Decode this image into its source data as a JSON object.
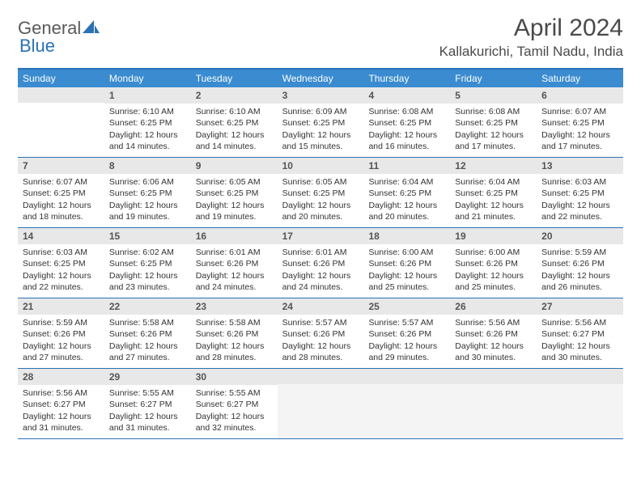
{
  "logo": {
    "part1": "General",
    "part2": "Blue"
  },
  "title": "April 2024",
  "location": "Kallakurichi, Tamil Nadu, India",
  "weekdays": [
    "Sunday",
    "Monday",
    "Tuesday",
    "Wednesday",
    "Thursday",
    "Friday",
    "Saturday"
  ],
  "colors": {
    "header_bar": "#3a8bd0",
    "border": "#2a72b5",
    "daynum_bg": "#e8e8e8",
    "blank_bg": "#f4f4f4",
    "text": "#333333"
  },
  "weeks": [
    [
      {
        "n": "",
        "sr": "",
        "ss": "",
        "dl": ""
      },
      {
        "n": "1",
        "sr": "Sunrise: 6:10 AM",
        "ss": "Sunset: 6:25 PM",
        "dl": "Daylight: 12 hours and 14 minutes."
      },
      {
        "n": "2",
        "sr": "Sunrise: 6:10 AM",
        "ss": "Sunset: 6:25 PM",
        "dl": "Daylight: 12 hours and 14 minutes."
      },
      {
        "n": "3",
        "sr": "Sunrise: 6:09 AM",
        "ss": "Sunset: 6:25 PM",
        "dl": "Daylight: 12 hours and 15 minutes."
      },
      {
        "n": "4",
        "sr": "Sunrise: 6:08 AM",
        "ss": "Sunset: 6:25 PM",
        "dl": "Daylight: 12 hours and 16 minutes."
      },
      {
        "n": "5",
        "sr": "Sunrise: 6:08 AM",
        "ss": "Sunset: 6:25 PM",
        "dl": "Daylight: 12 hours and 17 minutes."
      },
      {
        "n": "6",
        "sr": "Sunrise: 6:07 AM",
        "ss": "Sunset: 6:25 PM",
        "dl": "Daylight: 12 hours and 17 minutes."
      }
    ],
    [
      {
        "n": "7",
        "sr": "Sunrise: 6:07 AM",
        "ss": "Sunset: 6:25 PM",
        "dl": "Daylight: 12 hours and 18 minutes."
      },
      {
        "n": "8",
        "sr": "Sunrise: 6:06 AM",
        "ss": "Sunset: 6:25 PM",
        "dl": "Daylight: 12 hours and 19 minutes."
      },
      {
        "n": "9",
        "sr": "Sunrise: 6:05 AM",
        "ss": "Sunset: 6:25 PM",
        "dl": "Daylight: 12 hours and 19 minutes."
      },
      {
        "n": "10",
        "sr": "Sunrise: 6:05 AM",
        "ss": "Sunset: 6:25 PM",
        "dl": "Daylight: 12 hours and 20 minutes."
      },
      {
        "n": "11",
        "sr": "Sunrise: 6:04 AM",
        "ss": "Sunset: 6:25 PM",
        "dl": "Daylight: 12 hours and 20 minutes."
      },
      {
        "n": "12",
        "sr": "Sunrise: 6:04 AM",
        "ss": "Sunset: 6:25 PM",
        "dl": "Daylight: 12 hours and 21 minutes."
      },
      {
        "n": "13",
        "sr": "Sunrise: 6:03 AM",
        "ss": "Sunset: 6:25 PM",
        "dl": "Daylight: 12 hours and 22 minutes."
      }
    ],
    [
      {
        "n": "14",
        "sr": "Sunrise: 6:03 AM",
        "ss": "Sunset: 6:25 PM",
        "dl": "Daylight: 12 hours and 22 minutes."
      },
      {
        "n": "15",
        "sr": "Sunrise: 6:02 AM",
        "ss": "Sunset: 6:25 PM",
        "dl": "Daylight: 12 hours and 23 minutes."
      },
      {
        "n": "16",
        "sr": "Sunrise: 6:01 AM",
        "ss": "Sunset: 6:26 PM",
        "dl": "Daylight: 12 hours and 24 minutes."
      },
      {
        "n": "17",
        "sr": "Sunrise: 6:01 AM",
        "ss": "Sunset: 6:26 PM",
        "dl": "Daylight: 12 hours and 24 minutes."
      },
      {
        "n": "18",
        "sr": "Sunrise: 6:00 AM",
        "ss": "Sunset: 6:26 PM",
        "dl": "Daylight: 12 hours and 25 minutes."
      },
      {
        "n": "19",
        "sr": "Sunrise: 6:00 AM",
        "ss": "Sunset: 6:26 PM",
        "dl": "Daylight: 12 hours and 25 minutes."
      },
      {
        "n": "20",
        "sr": "Sunrise: 5:59 AM",
        "ss": "Sunset: 6:26 PM",
        "dl": "Daylight: 12 hours and 26 minutes."
      }
    ],
    [
      {
        "n": "21",
        "sr": "Sunrise: 5:59 AM",
        "ss": "Sunset: 6:26 PM",
        "dl": "Daylight: 12 hours and 27 minutes."
      },
      {
        "n": "22",
        "sr": "Sunrise: 5:58 AM",
        "ss": "Sunset: 6:26 PM",
        "dl": "Daylight: 12 hours and 27 minutes."
      },
      {
        "n": "23",
        "sr": "Sunrise: 5:58 AM",
        "ss": "Sunset: 6:26 PM",
        "dl": "Daylight: 12 hours and 28 minutes."
      },
      {
        "n": "24",
        "sr": "Sunrise: 5:57 AM",
        "ss": "Sunset: 6:26 PM",
        "dl": "Daylight: 12 hours and 28 minutes."
      },
      {
        "n": "25",
        "sr": "Sunrise: 5:57 AM",
        "ss": "Sunset: 6:26 PM",
        "dl": "Daylight: 12 hours and 29 minutes."
      },
      {
        "n": "26",
        "sr": "Sunrise: 5:56 AM",
        "ss": "Sunset: 6:26 PM",
        "dl": "Daylight: 12 hours and 30 minutes."
      },
      {
        "n": "27",
        "sr": "Sunrise: 5:56 AM",
        "ss": "Sunset: 6:27 PM",
        "dl": "Daylight: 12 hours and 30 minutes."
      }
    ],
    [
      {
        "n": "28",
        "sr": "Sunrise: 5:56 AM",
        "ss": "Sunset: 6:27 PM",
        "dl": "Daylight: 12 hours and 31 minutes."
      },
      {
        "n": "29",
        "sr": "Sunrise: 5:55 AM",
        "ss": "Sunset: 6:27 PM",
        "dl": "Daylight: 12 hours and 31 minutes."
      },
      {
        "n": "30",
        "sr": "Sunrise: 5:55 AM",
        "ss": "Sunset: 6:27 PM",
        "dl": "Daylight: 12 hours and 32 minutes."
      },
      {
        "n": "",
        "sr": "",
        "ss": "",
        "dl": "",
        "blank": true
      },
      {
        "n": "",
        "sr": "",
        "ss": "",
        "dl": "",
        "blank": true
      },
      {
        "n": "",
        "sr": "",
        "ss": "",
        "dl": "",
        "blank": true
      },
      {
        "n": "",
        "sr": "",
        "ss": "",
        "dl": "",
        "blank": true
      }
    ]
  ]
}
